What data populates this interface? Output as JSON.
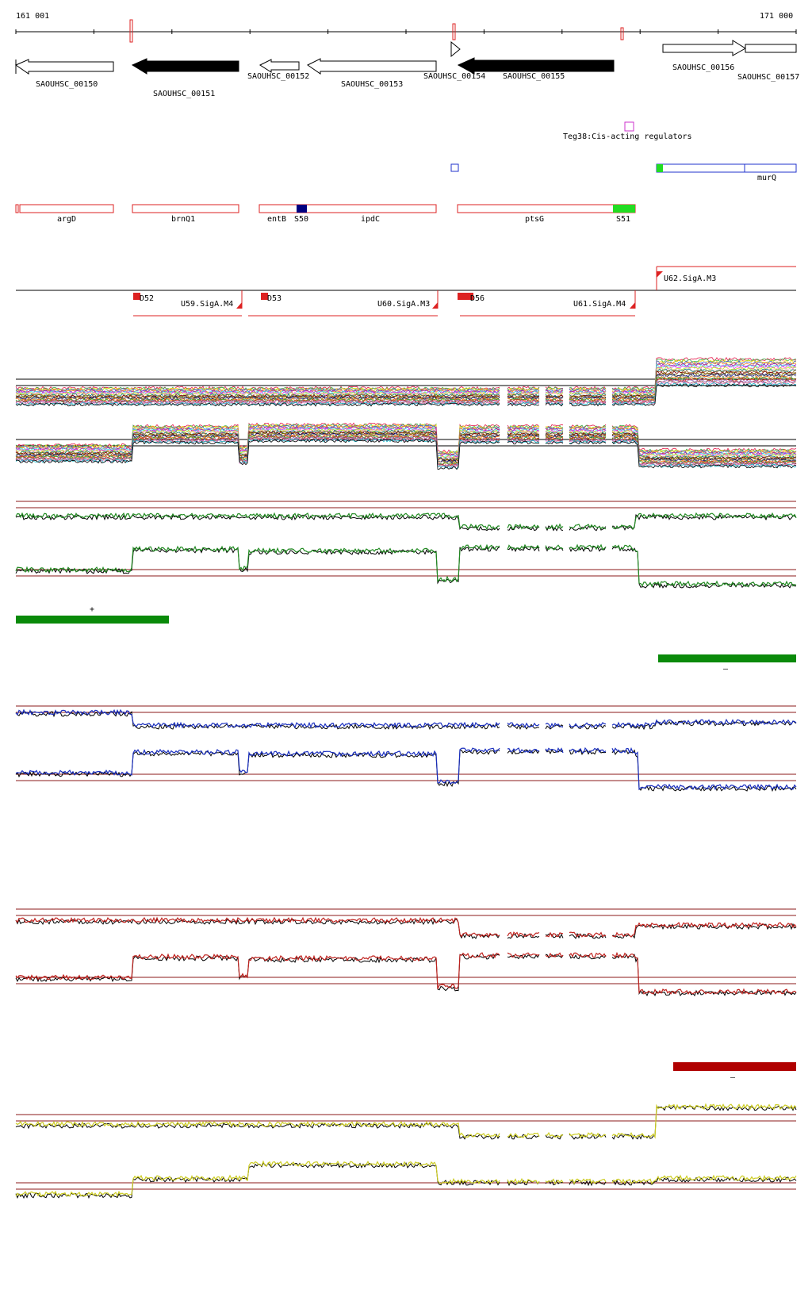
{
  "coords": {
    "start": "161 001",
    "end": "171 000"
  },
  "genes": [
    {
      "label": "SAOUHSC_00150",
      "strand": "-",
      "filled": false
    },
    {
      "label": "SAOUHSC_00151",
      "strand": "-",
      "filled": true
    },
    {
      "label": "SAOUHSC_00152",
      "strand": "-",
      "filled": false
    },
    {
      "label": "SAOUHSC_00153",
      "strand": "-",
      "filled": false
    },
    {
      "label": "SAOUHSC_00154",
      "strand": "+",
      "filled": false
    },
    {
      "label": "SAOUHSC_00155",
      "strand": "-",
      "filled": true
    },
    {
      "label": "SAOUHSC_00156",
      "strand": "+",
      "filled": false
    },
    {
      "label": "SAOUHSC_00157",
      "strand": "+",
      "filled": false
    }
  ],
  "regulator": {
    "label": "Teg38:Cis-acting regulators",
    "color": "#cc33cc"
  },
  "blue_feature": {
    "label": "murQ",
    "color": "#2233cc"
  },
  "operons": [
    {
      "label": "argD"
    },
    {
      "label": "brnQ1"
    },
    {
      "label": "entB"
    },
    {
      "label": "S50"
    },
    {
      "label": "ipdC"
    },
    {
      "label": "ptsG"
    },
    {
      "label": "S51"
    }
  ],
  "transcription_units": [
    {
      "label": "U62.SigA.M3"
    },
    {
      "label": "D52"
    },
    {
      "label": "U59.SigA.M4"
    },
    {
      "label": "D53"
    },
    {
      "label": "U60.SigA.M3"
    },
    {
      "label": "D56"
    },
    {
      "label": "U61.SigA.M4"
    }
  ],
  "segment_markers": {
    "plus": "+",
    "minus_green": "–",
    "minus_red": "–"
  },
  "colors": {
    "gene_filled": "#000000",
    "operon_outline": "#dd2222",
    "tu_red": "#dd2222",
    "track_green": "#228b22",
    "track_blue": "#1a2fbf",
    "track_red": "#c0231f",
    "track_yellow": "#cccc22",
    "segment_green": "#0a8a0a",
    "segment_red": "#b00000",
    "hl_green": "#22dd22",
    "hl_navy": "#000080"
  }
}
